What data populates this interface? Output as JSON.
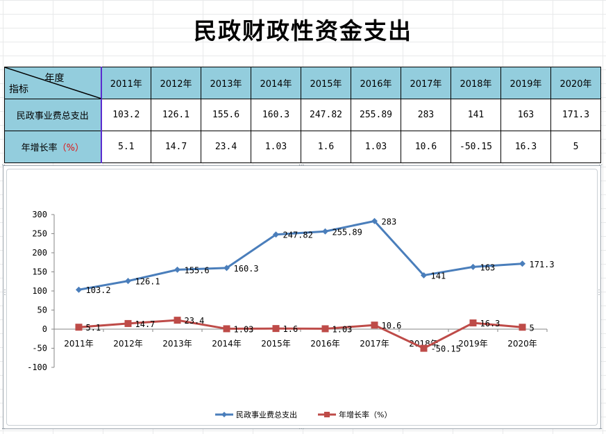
{
  "title": "民政财政性资金支出",
  "table": {
    "corner_year": "年度",
    "corner_indicator": "指标",
    "years": [
      "2011年",
      "2012年",
      "2013年",
      "2014年",
      "2015年",
      "2016年",
      "2017年",
      "2018年",
      "2019年",
      "2020年"
    ],
    "rows": [
      {
        "label": "民政事业费总支出",
        "values": [
          "103.2",
          "126.1",
          "155.6",
          "160.3",
          "247.82",
          "255.89",
          "283",
          "141",
          "163",
          "171.3"
        ]
      },
      {
        "label": "年增长率",
        "label_suffix": "（%）",
        "values": [
          "5.1",
          "14.7",
          "23.4",
          "1.03",
          "1.6",
          "1.03",
          "10.6",
          "-50.15",
          "16.3",
          "5"
        ]
      }
    ]
  },
  "colors": {
    "series1": "#4a7ebb",
    "series2": "#be4b48",
    "header_bg": "#93cddd"
  },
  "chart_data": {
    "type": "line",
    "categories": [
      "2011年",
      "2012年",
      "2013年",
      "2014年",
      "2015年",
      "2016年",
      "2017年",
      "2018年",
      "2019年",
      "2020年"
    ],
    "series": [
      {
        "name": "民政事业费总支出",
        "marker": "diamond",
        "values": [
          103.2,
          126.1,
          155.6,
          160.3,
          247.82,
          255.89,
          283,
          141,
          163,
          171.3
        ],
        "labels": [
          "103.2",
          "126.1",
          "155.6",
          "160.3",
          "247.82",
          "255.89",
          "283",
          "141",
          "163",
          "171.3"
        ]
      },
      {
        "name": "年增长率（%）",
        "marker": "square",
        "values": [
          5.1,
          14.7,
          23.4,
          1.03,
          1.6,
          1.03,
          10.6,
          -50.15,
          16.3,
          5
        ],
        "labels": [
          "5.1",
          "14.7",
          "23.4",
          "1.03",
          "1.6",
          "1.03",
          "10.6",
          "-50.15",
          "16.3",
          "5"
        ]
      }
    ],
    "yticks": [
      "300",
      "250",
      "200",
      "150",
      "100",
      "50",
      "0",
      "-50",
      "-100"
    ],
    "ylim": [
      -100,
      300
    ],
    "grid": false,
    "legend": "bottom"
  }
}
